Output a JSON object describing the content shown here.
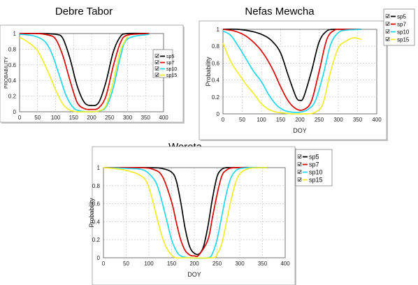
{
  "chart_data": [
    {
      "type": "line",
      "title": "Debre Tabor",
      "xlabel": "",
      "ylabel": "PROBABILITY",
      "xlim": [
        0,
        400
      ],
      "ylim": [
        0,
        1
      ],
      "xticks": [
        "0",
        "50",
        "100",
        "150",
        "200",
        "250",
        "300",
        "350",
        "400"
      ],
      "yticks": [
        "0",
        "0.2",
        "0.4",
        "0.6",
        "0.8",
        "1"
      ],
      "grid": true,
      "legend_position": "right",
      "series": [
        {
          "name": "sp5",
          "color": "#000000",
          "x": [
            0,
            60,
            100,
            120,
            140,
            160,
            180,
            200,
            220,
            240,
            260,
            280,
            300,
            360
          ],
          "y": [
            1,
            1,
            0.99,
            0.94,
            0.68,
            0.33,
            0.12,
            0.08,
            0.12,
            0.38,
            0.76,
            0.96,
            1,
            1
          ]
        },
        {
          "name": "sp7",
          "color": "#dd0000",
          "x": [
            0,
            50,
            80,
            100,
            120,
            140,
            160,
            180,
            200,
            220,
            240,
            260,
            280,
            300,
            360
          ],
          "y": [
            1,
            1,
            0.98,
            0.93,
            0.72,
            0.4,
            0.12,
            0.04,
            0.03,
            0.05,
            0.2,
            0.58,
            0.88,
            0.98,
            1
          ]
        },
        {
          "name": "sp10",
          "color": "#22d8ee",
          "x": [
            0,
            40,
            70,
            90,
            110,
            130,
            150,
            170,
            200,
            220,
            240,
            260,
            280,
            300,
            360
          ],
          "y": [
            0.99,
            0.97,
            0.9,
            0.74,
            0.47,
            0.2,
            0.05,
            0.01,
            0,
            0.01,
            0.06,
            0.3,
            0.7,
            0.93,
            0.99
          ]
        },
        {
          "name": "sp15",
          "color": "#f2ec2a",
          "x": [
            0,
            20,
            50,
            80,
            100,
            120,
            140,
            160,
            180,
            200,
            220,
            240,
            260,
            280,
            300
          ],
          "y": [
            0.95,
            0.9,
            0.78,
            0.5,
            0.28,
            0.1,
            0.02,
            0,
            0,
            0,
            0.01,
            0.08,
            0.38,
            0.78,
            0.96
          ]
        }
      ]
    },
    {
      "type": "line",
      "title": "Nefas Mewcha",
      "xlabel": "DOY",
      "ylabel": "Probability",
      "xlim": [
        0,
        400
      ],
      "ylim": [
        0,
        1
      ],
      "xticks": [
        "0",
        "50",
        "100",
        "150",
        "200",
        "250",
        "300",
        "350",
        "400"
      ],
      "yticks": [
        "0",
        "0.2",
        "0.4",
        "0.6",
        "0.8",
        "1"
      ],
      "grid": true,
      "legend_position": "top-right",
      "series": [
        {
          "name": "sp5",
          "color": "#000000",
          "x": [
            0,
            40,
            80,
            110,
            130,
            150,
            170,
            190,
            200,
            210,
            230,
            250,
            270,
            290,
            310,
            360
          ],
          "y": [
            1,
            1,
            0.97,
            0.92,
            0.85,
            0.72,
            0.45,
            0.2,
            0.16,
            0.2,
            0.5,
            0.85,
            0.98,
            1,
            1,
            1
          ]
        },
        {
          "name": "sp7",
          "color": "#dd0000",
          "x": [
            0,
            30,
            60,
            90,
            110,
            130,
            150,
            170,
            190,
            210,
            230,
            250,
            270,
            290,
            310,
            360
          ],
          "y": [
            1,
            0.98,
            0.92,
            0.8,
            0.68,
            0.52,
            0.32,
            0.15,
            0.06,
            0.05,
            0.15,
            0.5,
            0.88,
            0.99,
            1,
            1
          ]
        },
        {
          "name": "sp10",
          "color": "#22d8ee",
          "x": [
            0,
            20,
            40,
            60,
            80,
            100,
            120,
            140,
            160,
            180,
            200,
            220,
            240,
            260,
            280,
            300,
            320,
            360
          ],
          "y": [
            0.98,
            0.93,
            0.8,
            0.65,
            0.5,
            0.38,
            0.22,
            0.1,
            0.04,
            0.02,
            0.02,
            0.05,
            0.15,
            0.45,
            0.82,
            0.96,
            0.99,
            1
          ]
        },
        {
          "name": "sp15",
          "color": "#f2ec2a",
          "x": [
            0,
            20,
            40,
            60,
            80,
            100,
            120,
            140,
            160,
            180,
            200,
            220,
            240,
            260,
            280,
            300,
            320,
            340,
            360
          ],
          "y": [
            0.84,
            0.62,
            0.48,
            0.35,
            0.24,
            0.12,
            0.05,
            0.02,
            0.01,
            0,
            0,
            0,
            0.02,
            0.12,
            0.5,
            0.78,
            0.86,
            0.9,
            0.88
          ]
        }
      ]
    },
    {
      "type": "line",
      "title": "Wereta",
      "xlabel": "DOY",
      "ylabel": "Probability",
      "xlim": [
        0,
        400
      ],
      "ylim": [
        0,
        1
      ],
      "xticks": [
        "0",
        "50",
        "100",
        "150",
        "200",
        "250",
        "300",
        "350",
        "400"
      ],
      "yticks": [
        "0",
        "0.2",
        "0.4",
        "0.6",
        "0.8",
        "1"
      ],
      "grid": true,
      "legend_position": "right",
      "series": [
        {
          "name": "sp5",
          "color": "#000000",
          "x": [
            0,
            100,
            130,
            150,
            160,
            170,
            180,
            190,
            200,
            210,
            220,
            230,
            240,
            250,
            260,
            270,
            280,
            300,
            360
          ],
          "y": [
            1,
            1,
            0.99,
            0.95,
            0.86,
            0.62,
            0.32,
            0.12,
            0.05,
            0.04,
            0.12,
            0.35,
            0.66,
            0.9,
            0.98,
            1,
            1,
            1,
            1
          ]
        },
        {
          "name": "sp7",
          "color": "#dd0000",
          "x": [
            0,
            80,
            110,
            130,
            150,
            160,
            170,
            180,
            190,
            200,
            210,
            230,
            240,
            250,
            260,
            270,
            290,
            360
          ],
          "y": [
            1,
            1,
            0.98,
            0.9,
            0.62,
            0.4,
            0.2,
            0.08,
            0.03,
            0.02,
            0.03,
            0.2,
            0.45,
            0.7,
            0.9,
            0.97,
            1,
            1
          ]
        },
        {
          "name": "sp10",
          "color": "#22d8ee",
          "x": [
            0,
            60,
            90,
            110,
            120,
            130,
            140,
            150,
            160,
            170,
            190,
            230,
            240,
            250,
            260,
            270,
            280,
            290,
            300,
            320,
            360
          ],
          "y": [
            1,
            0.99,
            0.97,
            0.88,
            0.78,
            0.6,
            0.4,
            0.2,
            0.08,
            0.02,
            0,
            0,
            0.05,
            0.2,
            0.45,
            0.7,
            0.88,
            0.96,
            0.99,
            1,
            1
          ]
        },
        {
          "name": "sp15",
          "color": "#f2ec2a",
          "x": [
            0,
            40,
            70,
            90,
            100,
            110,
            120,
            130,
            140,
            150,
            160,
            180,
            240,
            250,
            260,
            270,
            280,
            290,
            300,
            320,
            360
          ],
          "y": [
            1,
            0.98,
            0.94,
            0.88,
            0.78,
            0.6,
            0.4,
            0.22,
            0.1,
            0.03,
            0,
            0,
            0,
            0.04,
            0.15,
            0.38,
            0.62,
            0.82,
            0.93,
            0.99,
            1
          ]
        }
      ]
    }
  ]
}
